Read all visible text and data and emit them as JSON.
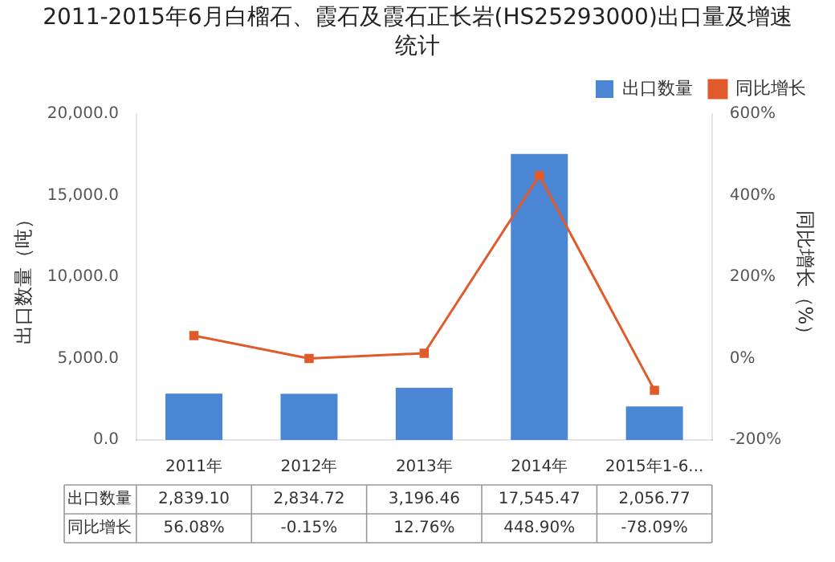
{
  "chart_data": {
    "type": "bar",
    "title": "2011-2015年6月白榴石、霞石及霞石正长岩(HS25293000)出口量及增速统计",
    "ylabel": "出口数量（吨）",
    "y2label": "同比增长（%）",
    "categories": [
      "2011年",
      "2012年",
      "2013年",
      "2014年",
      "2015年1-6..."
    ],
    "series": [
      {
        "name": "出口数量",
        "color": "#4a86d4",
        "values": [
          2839.1,
          2834.72,
          3196.46,
          17545.47,
          2056.77
        ],
        "value_labels": [
          "2,839.10",
          "2,834.72",
          "3,196.46",
          "17,545.47",
          "2,056.77"
        ]
      },
      {
        "name": "同比增长",
        "type": "line",
        "axis": "y2",
        "color": "#e05a2b",
        "values": [
          56.08,
          -0.15,
          12.76,
          448.9,
          -78.09
        ],
        "value_labels": [
          "56.08%",
          "-0.15%",
          "12.76%",
          "448.90%",
          "-78.09%"
        ]
      }
    ],
    "ylim": [
      0,
      20000
    ],
    "yticks": [
      {
        "value": 0,
        "label": "0.0"
      },
      {
        "value": 5000,
        "label": "5,000.0"
      },
      {
        "value": 10000,
        "label": "10,000.0"
      },
      {
        "value": 15000,
        "label": "15,000.0"
      },
      {
        "value": 20000,
        "label": "20,000.0"
      }
    ],
    "y2lim": [
      -200,
      600
    ],
    "y2ticks": [
      {
        "value": -200,
        "label": "-200%"
      },
      {
        "value": 0,
        "label": "0%"
      },
      {
        "value": 200,
        "label": "200%"
      },
      {
        "value": 400,
        "label": "400%"
      },
      {
        "value": 600,
        "label": "600%"
      }
    ],
    "legend": "top right",
    "marker": "square",
    "line_style": "solid",
    "grid": false
  }
}
